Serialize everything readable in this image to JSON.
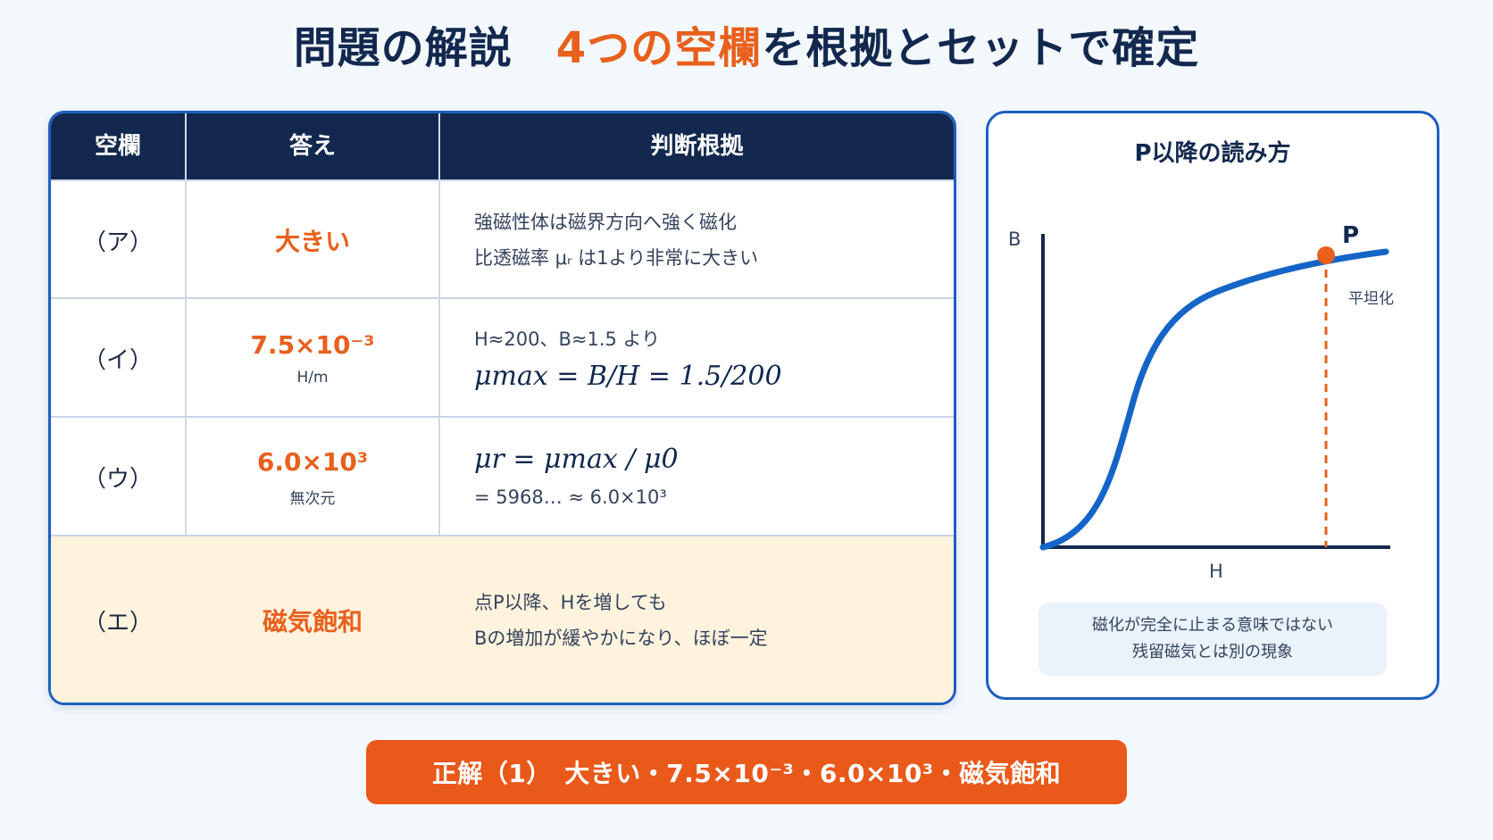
{
  "title": {
    "prefix": "問題の解説　",
    "accent": "4つの空欄",
    "suffix": "を根拠とセットで確定"
  },
  "table": {
    "headers": [
      "空欄",
      "答え",
      "判断根拠"
    ],
    "rows": [
      {
        "blank": "（ア）",
        "answer": "大きい",
        "answer_sub": "",
        "basis_lines": [
          "強磁性体は磁界方向へ強く磁化",
          "比透磁率 μᵣ は1より非常に大きい"
        ],
        "basis_formula": ""
      },
      {
        "blank": "（イ）",
        "answer": "7.5×10⁻³",
        "answer_sub": "H/m",
        "basis_lines": [
          "H≈200、B≈1.5 より"
        ],
        "basis_formula": "μmax = B/H = 1.5/200"
      },
      {
        "blank": "（ウ）",
        "answer": "6.0×10³",
        "answer_sub": "無次元",
        "basis_formula": "μr = μmax / μ0",
        "basis_lines": [
          "= 5968… ≈ 6.0×10³"
        ]
      },
      {
        "blank": "（エ）",
        "answer": "磁気飽和",
        "answer_sub": "",
        "basis_lines": [
          "点P以降、Hを増しても",
          "Bの増加が緩やかになり、ほぼ一定"
        ],
        "basis_formula": ""
      }
    ]
  },
  "graph": {
    "title": "P以降の読み方",
    "y_label": "B",
    "x_label": "H",
    "point_label": "P",
    "annotation": "平坦化",
    "note_lines": [
      "磁化が完全に止まる意味ではない",
      "残留磁気とは別の現象"
    ],
    "colors": {
      "curve": "#1565c8",
      "point": "#e8601c",
      "axis": "#12284e"
    }
  },
  "answer_bar": "正解（1）　大きい・7.5×10⁻³・6.0×10³・磁気飽和"
}
